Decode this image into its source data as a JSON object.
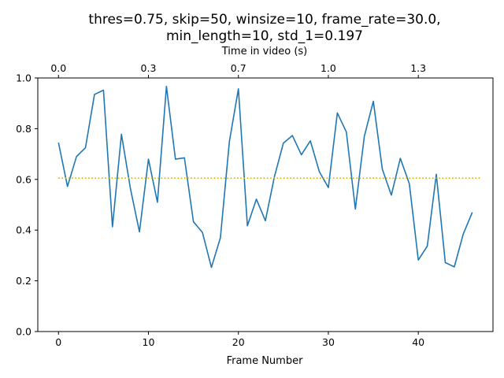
{
  "chart_data": {
    "type": "line",
    "title_line1": "thres=0.75, skip=50, winsize=10, frame_rate=30.0,",
    "title_line2": "min_length=10, std_1=0.197",
    "xlabel": "Frame Number",
    "x2label": "Time in video (s)",
    "ylabel": "",
    "xlim": [
      -2.3,
      48.3
    ],
    "ylim": [
      0.0,
      1.0
    ],
    "xticks": [
      0,
      10,
      20,
      30,
      40
    ],
    "yticks": [
      0.0,
      0.2,
      0.4,
      0.6,
      0.8,
      1.0
    ],
    "ytick_labels": [
      "0.0",
      "0.2",
      "0.4",
      "0.6",
      "0.8",
      "1.0"
    ],
    "x2ticks": [
      {
        "frame": 0,
        "label": "0.0"
      },
      {
        "frame": 10,
        "label": "0.3"
      },
      {
        "frame": 20,
        "label": "0.7"
      },
      {
        "frame": 30,
        "label": "1.0"
      },
      {
        "frame": 40,
        "label": "1.3"
      }
    ],
    "grid": false,
    "series": [
      {
        "color": "#1f77b4",
        "style": "solid",
        "x": [
          0,
          1,
          2,
          3,
          4,
          5,
          6,
          7,
          8,
          9,
          10,
          11,
          12,
          13,
          14,
          15,
          16,
          17,
          18,
          19,
          20,
          21,
          22,
          23,
          24,
          25,
          26,
          27,
          28,
          29,
          30,
          31,
          32,
          33,
          34,
          35,
          36,
          37,
          38,
          39,
          40,
          41,
          42,
          43,
          44,
          45,
          46
        ],
        "y": [
          0.745,
          0.572,
          0.69,
          0.725,
          0.935,
          0.952,
          0.413,
          0.778,
          0.563,
          0.393,
          0.68,
          0.51,
          0.967,
          0.68,
          0.685,
          0.433,
          0.391,
          0.253,
          0.37,
          0.75,
          0.957,
          0.417,
          0.522,
          0.437,
          0.61,
          0.743,
          0.773,
          0.697,
          0.752,
          0.63,
          0.568,
          0.862,
          0.787,
          0.483,
          0.77,
          0.908,
          0.64,
          0.538,
          0.683,
          0.583,
          0.282,
          0.337,
          0.62,
          0.272,
          0.255,
          0.385,
          0.47
        ]
      },
      {
        "color": "#d4b400",
        "style": "dotted",
        "x": [
          0,
          47
        ],
        "y": [
          0.605,
          0.605
        ]
      }
    ]
  }
}
